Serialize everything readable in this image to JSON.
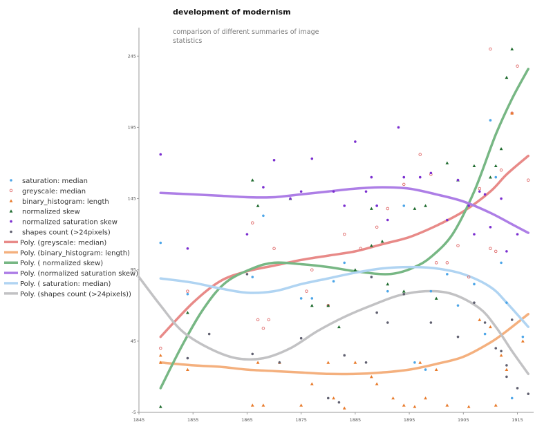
{
  "chart_data": {
    "type": "scatter",
    "title": "development of modernism",
    "subtitle_lines": [
      "comparison of different summaries of image",
      "statistics"
    ],
    "xlabel": "",
    "ylabel": "",
    "xlim": [
      1845,
      1918
    ],
    "ylim": [
      -5,
      265
    ],
    "x_ticks": [
      1845,
      1855,
      1865,
      1875,
      1885,
      1895,
      1905,
      1915
    ],
    "y_ticks": [
      -5,
      45,
      95,
      145,
      195,
      245
    ],
    "legend": {
      "placement": "left",
      "items": [
        {
          "label": "saturation: median",
          "kind": "marker",
          "series": "saturation"
        },
        {
          "label": "greyscale: median",
          "kind": "marker",
          "series": "greyscale"
        },
        {
          "label": "binary_histogram: length",
          "kind": "marker",
          "series": "binary"
        },
        {
          "label": "normalized skew",
          "kind": "marker",
          "series": "normskew"
        },
        {
          "label": "normalized saturation skew",
          "kind": "marker",
          "series": "normsatskew"
        },
        {
          "label": "shapes count (>24pixels)",
          "kind": "marker",
          "series": "shapes"
        },
        {
          "label": "Poly. (greyscale: median)",
          "kind": "line",
          "trend": "greyscale"
        },
        {
          "label": "Poly. (binary_histogram: length)",
          "kind": "line",
          "trend": "binary"
        },
        {
          "label": "Poly. ( normalized skew)",
          "kind": "line",
          "trend": "normskew"
        },
        {
          "label": "Poly. (normalized saturation skew)",
          "kind": "line",
          "trend": "normsatskew"
        },
        {
          "label": "Poly. ( saturation: median)",
          "kind": "line",
          "trend": "saturation"
        },
        {
          "label": "Poly. (shapes count (>24pixels))",
          "kind": "line",
          "trend": "shapes"
        }
      ]
    },
    "series": [
      {
        "key": "saturation",
        "name": "saturation: median",
        "marker": "dot",
        "color": "#4da6e8",
        "points": [
          [
            1849,
            114
          ],
          [
            1854,
            78
          ],
          [
            1866,
            90
          ],
          [
            1868,
            133
          ],
          [
            1875,
            75
          ],
          [
            1877,
            75
          ],
          [
            1881,
            87
          ],
          [
            1883,
            100
          ],
          [
            1888,
            90
          ],
          [
            1889,
            140
          ],
          [
            1891,
            80
          ],
          [
            1894,
            140
          ],
          [
            1896,
            30
          ],
          [
            1898,
            25
          ],
          [
            1899,
            80
          ],
          [
            1902,
            92
          ],
          [
            1904,
            70
          ],
          [
            1907,
            85
          ],
          [
            1909,
            50
          ],
          [
            1910,
            200
          ],
          [
            1911,
            160
          ],
          [
            1912,
            100
          ],
          [
            1913,
            72
          ],
          [
            1914,
            5
          ],
          [
            1916,
            48
          ]
        ]
      },
      {
        "key": "greyscale",
        "name": "greyscale: median",
        "marker": "ring",
        "color": "#e06a6a",
        "points": [
          [
            1849,
            40
          ],
          [
            1854,
            80
          ],
          [
            1866,
            128
          ],
          [
            1867,
            60
          ],
          [
            1868,
            54
          ],
          [
            1869,
            60
          ],
          [
            1870,
            110
          ],
          [
            1876,
            80
          ],
          [
            1877,
            95
          ],
          [
            1880,
            70
          ],
          [
            1883,
            120
          ],
          [
            1886,
            110
          ],
          [
            1889,
            125
          ],
          [
            1891,
            138
          ],
          [
            1894,
            155
          ],
          [
            1897,
            176
          ],
          [
            1899,
            162
          ],
          [
            1900,
            100
          ],
          [
            1902,
            100
          ],
          [
            1904,
            112
          ],
          [
            1906,
            90
          ],
          [
            1908,
            152
          ],
          [
            1910,
            110
          ],
          [
            1910,
            250
          ],
          [
            1911,
            108
          ],
          [
            1912,
            165
          ],
          [
            1914,
            205
          ],
          [
            1915,
            238
          ],
          [
            1917,
            158
          ]
        ]
      },
      {
        "key": "binary",
        "name": "binary_histogram: length",
        "marker": "tri",
        "color": "#e87a2a",
        "points": [
          [
            1849,
            35
          ],
          [
            1849,
            30
          ],
          [
            1854,
            25
          ],
          [
            1866,
            0
          ],
          [
            1867,
            30
          ],
          [
            1868,
            0
          ],
          [
            1871,
            30
          ],
          [
            1875,
            0
          ],
          [
            1877,
            15
          ],
          [
            1880,
            30
          ],
          [
            1881,
            5
          ],
          [
            1883,
            -2
          ],
          [
            1885,
            30
          ],
          [
            1888,
            20
          ],
          [
            1889,
            15
          ],
          [
            1892,
            5
          ],
          [
            1894,
            0
          ],
          [
            1896,
            -1
          ],
          [
            1897,
            30
          ],
          [
            1898,
            5
          ],
          [
            1900,
            25
          ],
          [
            1902,
            0
          ],
          [
            1906,
            -1
          ],
          [
            1908,
            60
          ],
          [
            1910,
            55
          ],
          [
            1911,
            0
          ],
          [
            1912,
            35
          ],
          [
            1913,
            25
          ],
          [
            1914,
            205
          ],
          [
            1916,
            45
          ]
        ]
      },
      {
        "key": "normskew",
        "name": "normalized skew",
        "marker": "tri",
        "color": "#1e6b2e",
        "points": [
          [
            1849,
            -1
          ],
          [
            1854,
            65
          ],
          [
            1866,
            158
          ],
          [
            1867,
            140
          ],
          [
            1873,
            145
          ],
          [
            1877,
            70
          ],
          [
            1880,
            70
          ],
          [
            1882,
            55
          ],
          [
            1885,
            95
          ],
          [
            1888,
            112
          ],
          [
            1888,
            138
          ],
          [
            1890,
            115
          ],
          [
            1891,
            85
          ],
          [
            1894,
            80
          ],
          [
            1896,
            138
          ],
          [
            1898,
            140
          ],
          [
            1900,
            75
          ],
          [
            1902,
            170
          ],
          [
            1904,
            158
          ],
          [
            1907,
            168
          ],
          [
            1910,
            160
          ],
          [
            1911,
            168
          ],
          [
            1912,
            180
          ],
          [
            1913,
            230
          ],
          [
            1914,
            250
          ]
        ]
      },
      {
        "key": "normsatskew",
        "name": "normalized saturation skew",
        "marker": "dot",
        "color": "#7b2fd0",
        "points": [
          [
            1849,
            176
          ],
          [
            1854,
            110
          ],
          [
            1865,
            120
          ],
          [
            1868,
            153
          ],
          [
            1870,
            172
          ],
          [
            1873,
            145
          ],
          [
            1875,
            150
          ],
          [
            1877,
            173
          ],
          [
            1881,
            150
          ],
          [
            1883,
            140
          ],
          [
            1885,
            185
          ],
          [
            1887,
            150
          ],
          [
            1888,
            160
          ],
          [
            1889,
            140
          ],
          [
            1891,
            130
          ],
          [
            1893,
            195
          ],
          [
            1894,
            160
          ],
          [
            1897,
            160
          ],
          [
            1899,
            163
          ],
          [
            1902,
            130
          ],
          [
            1904,
            158
          ],
          [
            1906,
            140
          ],
          [
            1907,
            120
          ],
          [
            1908,
            150
          ],
          [
            1909,
            148
          ],
          [
            1910,
            125
          ],
          [
            1912,
            145
          ],
          [
            1913,
            108
          ],
          [
            1915,
            120
          ]
        ]
      },
      {
        "key": "shapes",
        "name": "shapes count (>24pixels)",
        "marker": "dot",
        "color": "#606070",
        "points": [
          [
            1854,
            33
          ],
          [
            1858,
            50
          ],
          [
            1865,
            92
          ],
          [
            1866,
            36
          ],
          [
            1871,
            30
          ],
          [
            1875,
            47
          ],
          [
            1880,
            5
          ],
          [
            1882,
            2
          ],
          [
            1883,
            35
          ],
          [
            1887,
            30
          ],
          [
            1888,
            90
          ],
          [
            1889,
            65
          ],
          [
            1891,
            58
          ],
          [
            1894,
            78
          ],
          [
            1899,
            58
          ],
          [
            1904,
            48
          ],
          [
            1907,
            72
          ],
          [
            1909,
            58
          ],
          [
            1911,
            40
          ],
          [
            1912,
            38
          ],
          [
            1913,
            28
          ],
          [
            1913,
            20
          ],
          [
            1914,
            60
          ],
          [
            1915,
            12
          ],
          [
            1917,
            8
          ]
        ]
      }
    ],
    "trends": [
      {
        "key": "greyscale",
        "label": "Poly. (greyscale: median)",
        "color": "#e88a88",
        "points": [
          [
            1849,
            48
          ],
          [
            1855,
            72
          ],
          [
            1860,
            87
          ],
          [
            1865,
            94
          ],
          [
            1870,
            98
          ],
          [
            1875,
            102
          ],
          [
            1880,
            105
          ],
          [
            1885,
            108
          ],
          [
            1890,
            113
          ],
          [
            1895,
            118
          ],
          [
            1900,
            126
          ],
          [
            1905,
            136
          ],
          [
            1910,
            150
          ],
          [
            1913,
            162
          ],
          [
            1917,
            175
          ]
        ]
      },
      {
        "key": "binary",
        "label": "Poly. (binary_histogram: length)",
        "color": "#f4b07e",
        "points": [
          [
            1849,
            30
          ],
          [
            1855,
            28
          ],
          [
            1860,
            27
          ],
          [
            1865,
            25
          ],
          [
            1870,
            24
          ],
          [
            1875,
            23
          ],
          [
            1880,
            22
          ],
          [
            1885,
            22
          ],
          [
            1890,
            23
          ],
          [
            1895,
            25
          ],
          [
            1900,
            29
          ],
          [
            1905,
            34
          ],
          [
            1910,
            44
          ],
          [
            1913,
            52
          ],
          [
            1917,
            64
          ]
        ]
      },
      {
        "key": "normskew",
        "label": "Poly. ( normalized skew)",
        "color": "#77b784",
        "points": [
          [
            1849,
            12
          ],
          [
            1853,
            42
          ],
          [
            1857,
            68
          ],
          [
            1861,
            86
          ],
          [
            1866,
            96
          ],
          [
            1870,
            100
          ],
          [
            1875,
            99
          ],
          [
            1880,
            97
          ],
          [
            1885,
            94
          ],
          [
            1890,
            92
          ],
          [
            1893,
            93
          ],
          [
            1896,
            97
          ],
          [
            1899,
            104
          ],
          [
            1903,
            120
          ],
          [
            1907,
            150
          ],
          [
            1911,
            190
          ],
          [
            1914,
            215
          ],
          [
            1917,
            236
          ]
        ]
      },
      {
        "key": "normsatskew",
        "label": "Poly. (normalized saturation skew)",
        "color": "#ad7ee6",
        "points": [
          [
            1849,
            149
          ],
          [
            1855,
            148
          ],
          [
            1860,
            147
          ],
          [
            1865,
            146
          ],
          [
            1870,
            146
          ],
          [
            1875,
            148
          ],
          [
            1880,
            150
          ],
          [
            1885,
            152
          ],
          [
            1890,
            153
          ],
          [
            1895,
            152
          ],
          [
            1900,
            148
          ],
          [
            1905,
            143
          ],
          [
            1910,
            135
          ],
          [
            1914,
            127
          ],
          [
            1917,
            121
          ]
        ]
      },
      {
        "key": "saturation",
        "label": "Poly. ( saturation: median)",
        "color": "#b0d4f2",
        "points": [
          [
            1849,
            89
          ],
          [
            1855,
            86
          ],
          [
            1860,
            82
          ],
          [
            1865,
            79
          ],
          [
            1870,
            80
          ],
          [
            1875,
            85
          ],
          [
            1880,
            89
          ],
          [
            1885,
            93
          ],
          [
            1890,
            96
          ],
          [
            1895,
            97
          ],
          [
            1900,
            96
          ],
          [
            1905,
            92
          ],
          [
            1910,
            83
          ],
          [
            1913,
            72
          ],
          [
            1917,
            55
          ]
        ]
      },
      {
        "key": "shapes",
        "label": "Poly. (shapes count (>24pixels))",
        "color": "#c2c2c4",
        "points": [
          [
            1845,
            90
          ],
          [
            1849,
            70
          ],
          [
            1853,
            52
          ],
          [
            1858,
            40
          ],
          [
            1863,
            33
          ],
          [
            1868,
            33
          ],
          [
            1873,
            40
          ],
          [
            1878,
            52
          ],
          [
            1883,
            62
          ],
          [
            1888,
            70
          ],
          [
            1893,
            77
          ],
          [
            1898,
            80
          ],
          [
            1903,
            78
          ],
          [
            1908,
            68
          ],
          [
            1911,
            55
          ],
          [
            1914,
            38
          ],
          [
            1917,
            22
          ]
        ]
      }
    ]
  }
}
